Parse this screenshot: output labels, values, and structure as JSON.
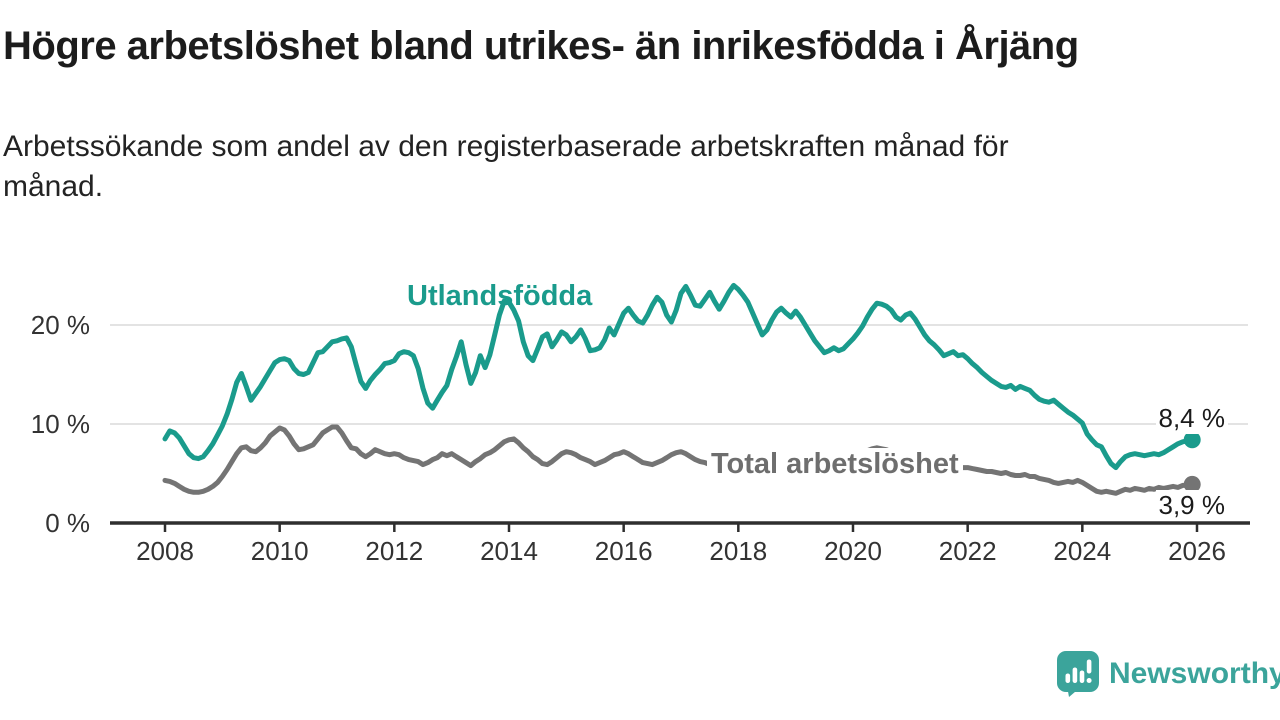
{
  "header": {
    "title": "Högre arbetslöshet bland utrikes- än inrikesfödda i Årjäng",
    "subtitle_line1": "Arbetssökande som andel av den registerbaserade arbetskraften månad för",
    "subtitle_line2": "månad."
  },
  "footer": {
    "brand": "Newsworthy"
  },
  "colors": {
    "teal_line": "#1a9b8c",
    "gray_line": "#747474",
    "gray_label": "#6e6e6e",
    "axis": "#2e2e2e",
    "grid": "#dadada",
    "logo_teal": "#3ba49b"
  },
  "chart_data": {
    "type": "line",
    "title": "Högre arbetslöshet bland utrikes- än inrikesfödda i Årjäng",
    "subtitle": "Arbetssökande som andel av den registerbaserade arbetskraften månad för månad.",
    "xlabel": "",
    "ylabel": "",
    "x_unit": "month",
    "x_range": [
      "2008-01",
      "2025-12"
    ],
    "x_tick_labels": [
      "2008",
      "2010",
      "2012",
      "2014",
      "2016",
      "2018",
      "2020",
      "2022",
      "2024",
      "2026"
    ],
    "y_ticks": [
      {
        "value": 0,
        "label": "0 %"
      },
      {
        "value": 10,
        "label": "10 %"
      },
      {
        "value": 20,
        "label": "20 %"
      }
    ],
    "ylim": [
      0,
      25
    ],
    "grid": "horizontal",
    "legend_position": "inline-labels",
    "series": [
      {
        "name": "Total arbetslöshet",
        "color": "#747474",
        "end_label": "3,9 %",
        "end_value": 3.9,
        "values": [
          4.3,
          4.2,
          4.0,
          3.7,
          3.4,
          3.2,
          3.1,
          3.1,
          3.2,
          3.4,
          3.7,
          4.1,
          4.7,
          5.4,
          6.2,
          7.0,
          7.6,
          7.7,
          7.3,
          7.2,
          7.6,
          8.1,
          8.8,
          9.2,
          9.6,
          9.4,
          8.8,
          8.0,
          7.4,
          7.5,
          7.7,
          7.9,
          8.5,
          9.1,
          9.4,
          9.7,
          9.7,
          9.1,
          8.3,
          7.6,
          7.5,
          7.0,
          6.7,
          7.0,
          7.4,
          7.2,
          7.0,
          6.9,
          7.0,
          6.9,
          6.6,
          6.4,
          6.3,
          6.2,
          5.9,
          6.1,
          6.4,
          6.6,
          7.0,
          6.8,
          7.0,
          6.7,
          6.4,
          6.1,
          5.8,
          6.2,
          6.5,
          6.9,
          7.1,
          7.4,
          7.8,
          8.2,
          8.4,
          8.5,
          8.1,
          7.6,
          7.2,
          6.7,
          6.4,
          6.0,
          5.9,
          6.2,
          6.6,
          7.0,
          7.2,
          7.1,
          6.9,
          6.6,
          6.4,
          6.2,
          5.9,
          6.1,
          6.3,
          6.6,
          6.9,
          7.0,
          7.2,
          7.0,
          6.7,
          6.4,
          6.1,
          6.0,
          5.9,
          6.1,
          6.3,
          6.6,
          6.9,
          7.1,
          7.2,
          7.0,
          6.7,
          6.4,
          6.2,
          6.1,
          5.9,
          6.1,
          6.2,
          6.4,
          6.5,
          6.6,
          6.5,
          6.4,
          6.2,
          6.0,
          5.8,
          5.6,
          5.7,
          5.9,
          5.8,
          5.9,
          6.1,
          6.2,
          6.3,
          6.1,
          5.9,
          5.7,
          5.5,
          5.4,
          5.5,
          5.7,
          5.6,
          5.8,
          6.0,
          6.2,
          6.5,
          6.7,
          7.0,
          7.3,
          7.5,
          7.6,
          7.5,
          7.4,
          7.2,
          7.0,
          6.9,
          6.8,
          6.7,
          6.6,
          6.4,
          6.2,
          6.1,
          6.0,
          5.9,
          5.8,
          5.8,
          5.7,
          5.6,
          5.6,
          5.6,
          5.5,
          5.4,
          5.3,
          5.2,
          5.2,
          5.1,
          5.0,
          5.1,
          4.9,
          4.8,
          4.8,
          4.9,
          4.7,
          4.7,
          4.5,
          4.4,
          4.3,
          4.1,
          4.0,
          4.1,
          4.2,
          4.1,
          4.3,
          4.1,
          3.8,
          3.5,
          3.2,
          3.1,
          3.2,
          3.1,
          3.0,
          3.2,
          3.4,
          3.3,
          3.5,
          3.4,
          3.3,
          3.5,
          3.4,
          3.6,
          3.5,
          3.6,
          3.7,
          3.6,
          3.8,
          3.8,
          3.9
        ]
      },
      {
        "name": "Utlandsfödda",
        "color": "#1a9b8c",
        "end_label": "8,4 %",
        "end_value": 8.4,
        "values": [
          8.5,
          9.3,
          9.1,
          8.6,
          7.8,
          7.0,
          6.6,
          6.5,
          6.7,
          7.3,
          8.0,
          8.9,
          9.8,
          11.0,
          12.5,
          14.2,
          15.1,
          13.8,
          12.4,
          13.1,
          13.8,
          14.6,
          15.4,
          16.2,
          16.5,
          16.6,
          16.4,
          15.6,
          15.1,
          15.0,
          15.2,
          16.2,
          17.2,
          17.3,
          17.8,
          18.3,
          18.4,
          18.6,
          18.7,
          17.8,
          16.0,
          14.3,
          13.6,
          14.4,
          15.0,
          15.5,
          16.1,
          16.2,
          16.4,
          17.1,
          17.3,
          17.2,
          16.9,
          15.6,
          13.6,
          12.1,
          11.6,
          12.4,
          13.2,
          13.9,
          15.5,
          16.8,
          18.3,
          16.0,
          14.1,
          15.2,
          16.9,
          15.7,
          17.0,
          19.0,
          21.0,
          22.4,
          22.3,
          21.5,
          20.4,
          18.3,
          16.9,
          16.4,
          17.6,
          18.8,
          19.1,
          17.8,
          18.5,
          19.3,
          19.0,
          18.3,
          18.8,
          19.5,
          18.6,
          17.4,
          17.5,
          17.7,
          18.5,
          19.7,
          19.0,
          20.1,
          21.2,
          21.7,
          21.0,
          20.4,
          20.2,
          21.0,
          22.0,
          22.8,
          22.3,
          21.0,
          20.3,
          21.5,
          23.2,
          23.9,
          23.0,
          22.0,
          21.9,
          22.6,
          23.3,
          22.4,
          21.6,
          22.4,
          23.3,
          24.0,
          23.6,
          23.0,
          22.3,
          21.2,
          20.1,
          19.0,
          19.5,
          20.5,
          21.3,
          21.7,
          21.2,
          20.8,
          21.4,
          20.8,
          20.0,
          19.2,
          18.4,
          17.8,
          17.2,
          17.4,
          17.7,
          17.4,
          17.6,
          18.1,
          18.6,
          19.2,
          19.9,
          20.8,
          21.6,
          22.2,
          22.1,
          21.9,
          21.5,
          20.8,
          20.5,
          21.0,
          21.2,
          20.6,
          19.8,
          19.0,
          18.4,
          18.0,
          17.5,
          16.9,
          17.1,
          17.3,
          16.9,
          17.0,
          16.6,
          16.1,
          15.7,
          15.2,
          14.8,
          14.4,
          14.1,
          13.8,
          13.7,
          13.9,
          13.5,
          13.8,
          13.6,
          13.4,
          12.9,
          12.5,
          12.3,
          12.2,
          12.4,
          12.0,
          11.6,
          11.2,
          10.9,
          10.5,
          10.1,
          9.0,
          8.4,
          7.9,
          7.7,
          6.8,
          6.0,
          5.6,
          6.2,
          6.7,
          6.9,
          7.0,
          6.9,
          6.8,
          6.9,
          7.0,
          6.9,
          7.1,
          7.4,
          7.7,
          8.0,
          8.2,
          8.3,
          8.4
        ]
      }
    ]
  }
}
